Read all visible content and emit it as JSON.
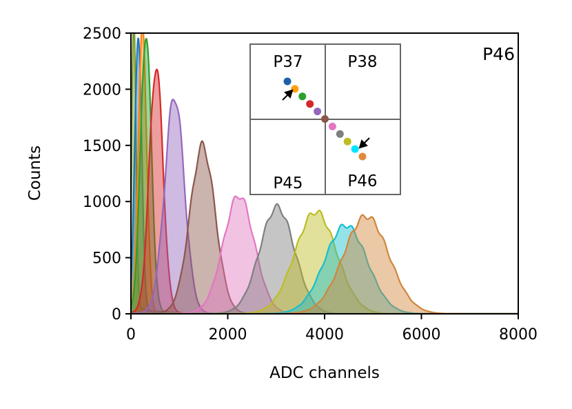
{
  "chart_data": {
    "type": "area",
    "title": "",
    "xlabel": "ADC channels",
    "ylabel": "Counts",
    "xlim": [
      0,
      8000
    ],
    "ylim": [
      0,
      2500
    ],
    "xticks": [
      0,
      2000,
      4000,
      6000,
      8000
    ],
    "yticks": [
      0,
      500,
      1000,
      1500,
      2000,
      2500
    ],
    "xtick_labels": [
      "0",
      "2000",
      "4000",
      "6000",
      "8000"
    ],
    "ytick_labels": [
      "0",
      "500",
      "1000",
      "1500",
      "2000",
      "2500"
    ],
    "panel_label": "P46",
    "series": [
      {
        "name": "olive-base",
        "color": "#7a9a2e",
        "mean": 60,
        "sigma": 45,
        "peak": 2500,
        "baseline": 60
      },
      {
        "name": "blue",
        "color": "#1f77b4",
        "mean": 150,
        "sigma": 70,
        "peak": 2500,
        "baseline": 30
      },
      {
        "name": "orange",
        "color": "#ff7f0e",
        "mean": 240,
        "sigma": 85,
        "peak": 2500,
        "baseline": 20
      },
      {
        "name": "green",
        "color": "#2ca02c",
        "mean": 310,
        "sigma": 110,
        "peak": 2500,
        "baseline": 20
      },
      {
        "name": "red",
        "color": "#d62728",
        "mean": 520,
        "sigma": 140,
        "peak": 2200,
        "baseline": 15
      },
      {
        "name": "purple",
        "color": "#9467bd",
        "mean": 900,
        "sigma": 200,
        "peak": 1930,
        "baseline": 15
      },
      {
        "name": "brown",
        "color": "#8c564b",
        "mean": 1480,
        "sigma": 260,
        "peak": 1480,
        "baseline": 15
      },
      {
        "name": "pink",
        "color": "#e377c2",
        "mean": 2230,
        "sigma": 320,
        "peak": 1040,
        "baseline": 15
      },
      {
        "name": "gray",
        "color": "#7f7f7f",
        "mean": 3020,
        "sigma": 360,
        "peak": 940,
        "baseline": 10
      },
      {
        "name": "yellow",
        "color": "#bcbd22",
        "mean": 3820,
        "sigma": 430,
        "peak": 900,
        "baseline": 10
      },
      {
        "name": "cyan",
        "color": "#17becf",
        "mean": 4440,
        "sigma": 440,
        "peak": 780,
        "baseline": 10
      },
      {
        "name": "tan",
        "color": "#d2853a",
        "mean": 4860,
        "sigma": 470,
        "peak": 860,
        "baseline": 10
      }
    ],
    "inset": {
      "pixel_labels": [
        "P37",
        "P38",
        "P45",
        "P46"
      ],
      "scan_points": [
        "#1f5fa8",
        "#ff9f0e",
        "#2ca02c",
        "#d62728",
        "#9467bd",
        "#8c564b",
        "#e377c2",
        "#7f7f7f",
        "#bcbd22",
        "#00e5ff",
        "#e08a3c"
      ]
    }
  }
}
